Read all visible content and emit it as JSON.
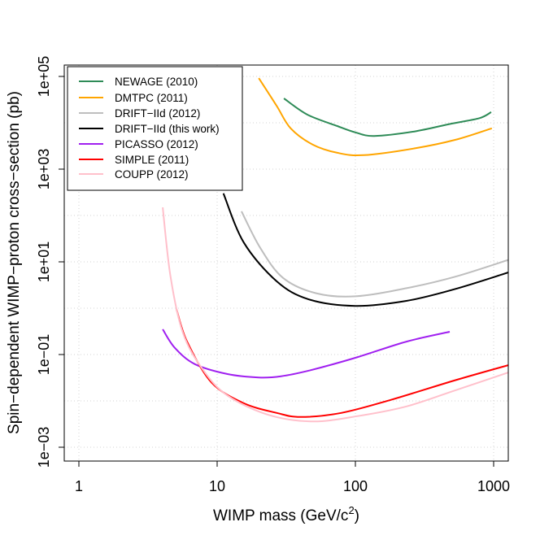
{
  "chart_data": {
    "type": "line",
    "xlabel": "WIMP mass (GeV/c",
    "xlabel_sup": "2",
    "xlabel_end": ")",
    "ylabel": "Spin−dependent WIMP−proton cross−section (pb)",
    "x_scale": "log",
    "y_scale": "log",
    "xlim": [
      0.78,
      1276
    ],
    "ylim": [
      0.0003,
      200000
    ],
    "x_ticks": [
      {
        "v": 1,
        "label": "1"
      },
      {
        "v": 10,
        "label": "10"
      },
      {
        "v": 100,
        "label": "100"
      },
      {
        "v": 1000,
        "label": "1000"
      }
    ],
    "y_ticks": [
      {
        "v": 100000,
        "label": "1e+05"
      },
      {
        "v": 1000,
        "label": "1e+03"
      },
      {
        "v": 10,
        "label": "1e+01"
      },
      {
        "v": 0.1,
        "label": "1e−01"
      },
      {
        "v": 0.001,
        "label": "1e−03"
      }
    ],
    "grid": true,
    "legend_position": "top-left",
    "series": [
      {
        "name": "NEWAGE (2010)",
        "color": "#2e8b57",
        "x": [
          30.4,
          45,
          74,
          100,
          137,
          267,
          497,
          790,
          960
        ],
        "y": [
          33600,
          15000,
          8500,
          6200,
          5200,
          6500,
          9600,
          12600,
          17000
        ]
      },
      {
        "name": "DMTPC (2011)",
        "color": "#ffa500",
        "x": [
          20,
          27,
          34,
          49,
          74,
          115,
          267,
          530,
          970
        ],
        "y": [
          92000,
          23000,
          7600,
          3400,
          2250,
          2000,
          2800,
          4300,
          7600
        ]
      },
      {
        "name": "DRIFT−IId (2012)",
        "color": "#bebebe",
        "x": [
          15,
          20.5,
          30,
          52,
          100,
          234,
          530,
          1276
        ],
        "y": [
          123,
          20,
          4.5,
          2.1,
          1.8,
          2.7,
          4.8,
          11
        ]
      },
      {
        "name": "DRIFT−IId (this work)",
        "color": "#000000",
        "x": [
          11.1,
          15.6,
          27,
          46,
          100,
          234,
          530,
          1276
        ],
        "y": [
          300,
          26,
          3.8,
          1.55,
          1.12,
          1.44,
          2.6,
          5.9
        ]
      },
      {
        "name": "PICASSO (2012)",
        "color": "#a020f0",
        "x": [
          4.04,
          4.94,
          6.9,
          11.9,
          20,
          29,
          46,
          100,
          234,
          481
        ],
        "y": [
          0.35,
          0.14,
          0.062,
          0.038,
          0.032,
          0.034,
          0.045,
          0.085,
          0.19,
          0.31
        ]
      },
      {
        "name": "SIMPLE (2011)",
        "color": "#ff0000",
        "x": [
          5.08,
          6.06,
          9.1,
          15.6,
          27,
          40,
          79,
          180,
          530,
          1276
        ],
        "y": [
          0.95,
          0.19,
          0.025,
          0.0089,
          0.0055,
          0.0045,
          0.0055,
          0.0105,
          0.028,
          0.059
        ]
      },
      {
        "name": "COUPP (2012)",
        "color": "#ffc0cb",
        "x": [
          4.04,
          4.6,
          5.66,
          7.9,
          11.9,
          23.5,
          49,
          104,
          234,
          530,
          1276
        ],
        "y": [
          150,
          4.8,
          0.29,
          0.047,
          0.013,
          0.005,
          0.0036,
          0.0047,
          0.0076,
          0.017,
          0.041
        ]
      }
    ]
  }
}
